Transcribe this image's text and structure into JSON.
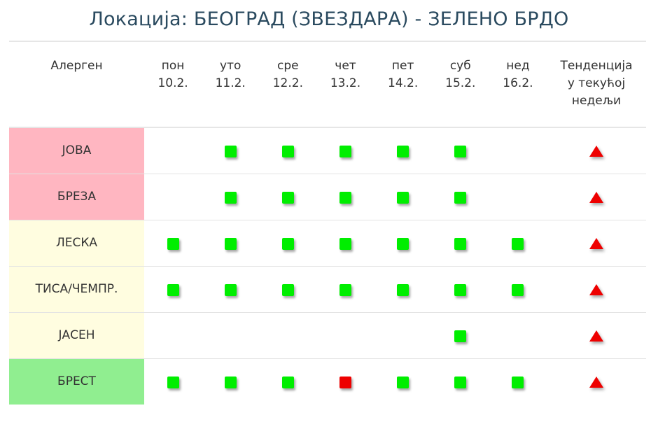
{
  "title": "Локација: БЕОГРАД (ЗВЕЗДАРА) - ЗЕЛЕНО БРДО",
  "table": {
    "header": {
      "allergen": "Алерген",
      "days": [
        {
          "day": "пон",
          "date": "10.2."
        },
        {
          "day": "уто",
          "date": "11.2."
        },
        {
          "day": "сре",
          "date": "12.2."
        },
        {
          "day": "чет",
          "date": "13.2."
        },
        {
          "day": "пет",
          "date": "14.2."
        },
        {
          "day": "суб",
          "date": "15.2."
        },
        {
          "day": "нед",
          "date": "16.2."
        }
      ],
      "trend": [
        "Тенденција",
        "у текућој",
        "недељи"
      ]
    },
    "colors": {
      "level_low": "#00ee00",
      "level_high": "#ee0000",
      "trend_up": "#ee0000",
      "category_high": "#ffb6c1",
      "category_medium": "#fffde0",
      "category_low": "#90ee90"
    },
    "rows": [
      {
        "allergen": "ЈОВА",
        "category_color": "#ffb6c1",
        "levels": [
          "",
          "low",
          "low",
          "low",
          "low",
          "low",
          ""
        ],
        "trend": "up"
      },
      {
        "allergen": "БРЕЗА",
        "category_color": "#ffb6c1",
        "levels": [
          "",
          "low",
          "low",
          "low",
          "low",
          "low",
          ""
        ],
        "trend": "up"
      },
      {
        "allergen": "ЛЕСКА",
        "category_color": "#fffde0",
        "levels": [
          "low",
          "low",
          "low",
          "low",
          "low",
          "low",
          "low"
        ],
        "trend": "up"
      },
      {
        "allergen": "ТИСА/ЧЕМПР.",
        "category_color": "#fffde0",
        "levels": [
          "low",
          "low",
          "low",
          "low",
          "low",
          "low",
          "low"
        ],
        "trend": "up"
      },
      {
        "allergen": "ЈАСЕН",
        "category_color": "#fffde0",
        "levels": [
          "",
          "",
          "",
          "",
          "",
          "low",
          ""
        ],
        "trend": "up"
      },
      {
        "allergen": "БРЕСТ",
        "category_color": "#90ee90",
        "levels": [
          "low",
          "low",
          "low",
          "high",
          "low",
          "low",
          "low"
        ],
        "trend": "up"
      }
    ]
  }
}
